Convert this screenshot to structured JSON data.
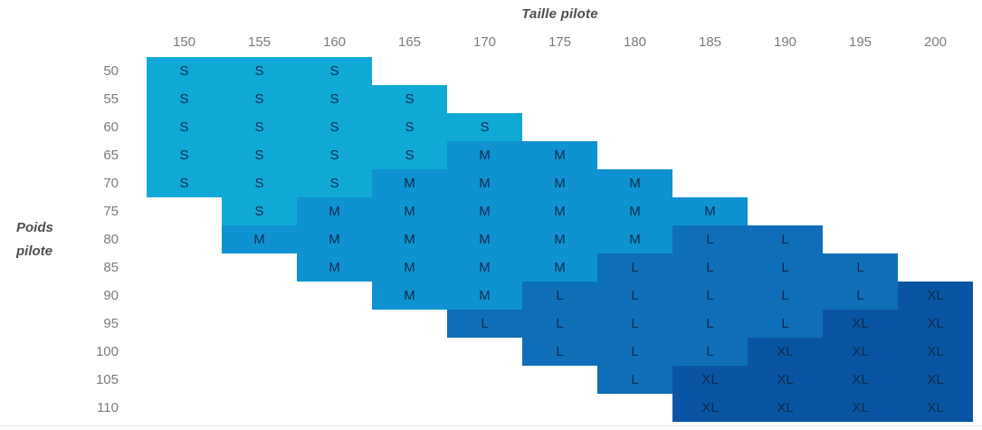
{
  "chart_data": {
    "type": "heatmap",
    "xlabel": "Taille pilote",
    "ylabel": "Poids pilote",
    "ylabel_lines": [
      "Poids",
      "pilote"
    ],
    "x_categories": [
      "150",
      "155",
      "160",
      "165",
      "170",
      "175",
      "180",
      "185",
      "190",
      "195",
      "200"
    ],
    "y_categories": [
      "50",
      "55",
      "60",
      "65",
      "70",
      "75",
      "80",
      "85",
      "90",
      "95",
      "100",
      "105",
      "110"
    ],
    "matrix": [
      [
        "S",
        "S",
        "S",
        "",
        "",
        "",
        "",
        "",
        "",
        "",
        ""
      ],
      [
        "S",
        "S",
        "S",
        "S",
        "",
        "",
        "",
        "",
        "",
        "",
        ""
      ],
      [
        "S",
        "S",
        "S",
        "S",
        "S",
        "",
        "",
        "",
        "",
        "",
        ""
      ],
      [
        "S",
        "S",
        "S",
        "S",
        "M",
        "M",
        "",
        "",
        "",
        "",
        ""
      ],
      [
        "S",
        "S",
        "S",
        "M",
        "M",
        "M",
        "M",
        "",
        "",
        "",
        ""
      ],
      [
        "",
        "S",
        "M",
        "M",
        "M",
        "M",
        "M",
        "M",
        "",
        "",
        ""
      ],
      [
        "",
        "M",
        "M",
        "M",
        "M",
        "M",
        "M",
        "L",
        "L",
        "",
        ""
      ],
      [
        "",
        "",
        "M",
        "M",
        "M",
        "M",
        "L",
        "L",
        "L",
        "L",
        ""
      ],
      [
        "",
        "",
        "",
        "M",
        "M",
        "L",
        "L",
        "L",
        "L",
        "L",
        "XL"
      ],
      [
        "",
        "",
        "",
        "",
        "L",
        "L",
        "L",
        "L",
        "L",
        "XL",
        "XL"
      ],
      [
        "",
        "",
        "",
        "",
        "",
        "L",
        "L",
        "L",
        "XL",
        "XL",
        "XL"
      ],
      [
        "",
        "",
        "",
        "",
        "",
        "",
        "L",
        "XL",
        "XL",
        "XL",
        "XL"
      ],
      [
        "",
        "",
        "",
        "",
        "",
        "",
        "",
        "XL",
        "XL",
        "XL",
        "XL"
      ]
    ],
    "size_colors": {
      "S": "#10A9D6",
      "M": "#0E92D1",
      "L": "#0E6FB8",
      "XL": "#0A55A3"
    },
    "cell_text_color": "#0D2C4E",
    "axis_title_color": "#4D4D4D",
    "tick_color": "#7B7B7B",
    "background_color": "#FFFFFF",
    "legend": "none",
    "grid": false
  }
}
